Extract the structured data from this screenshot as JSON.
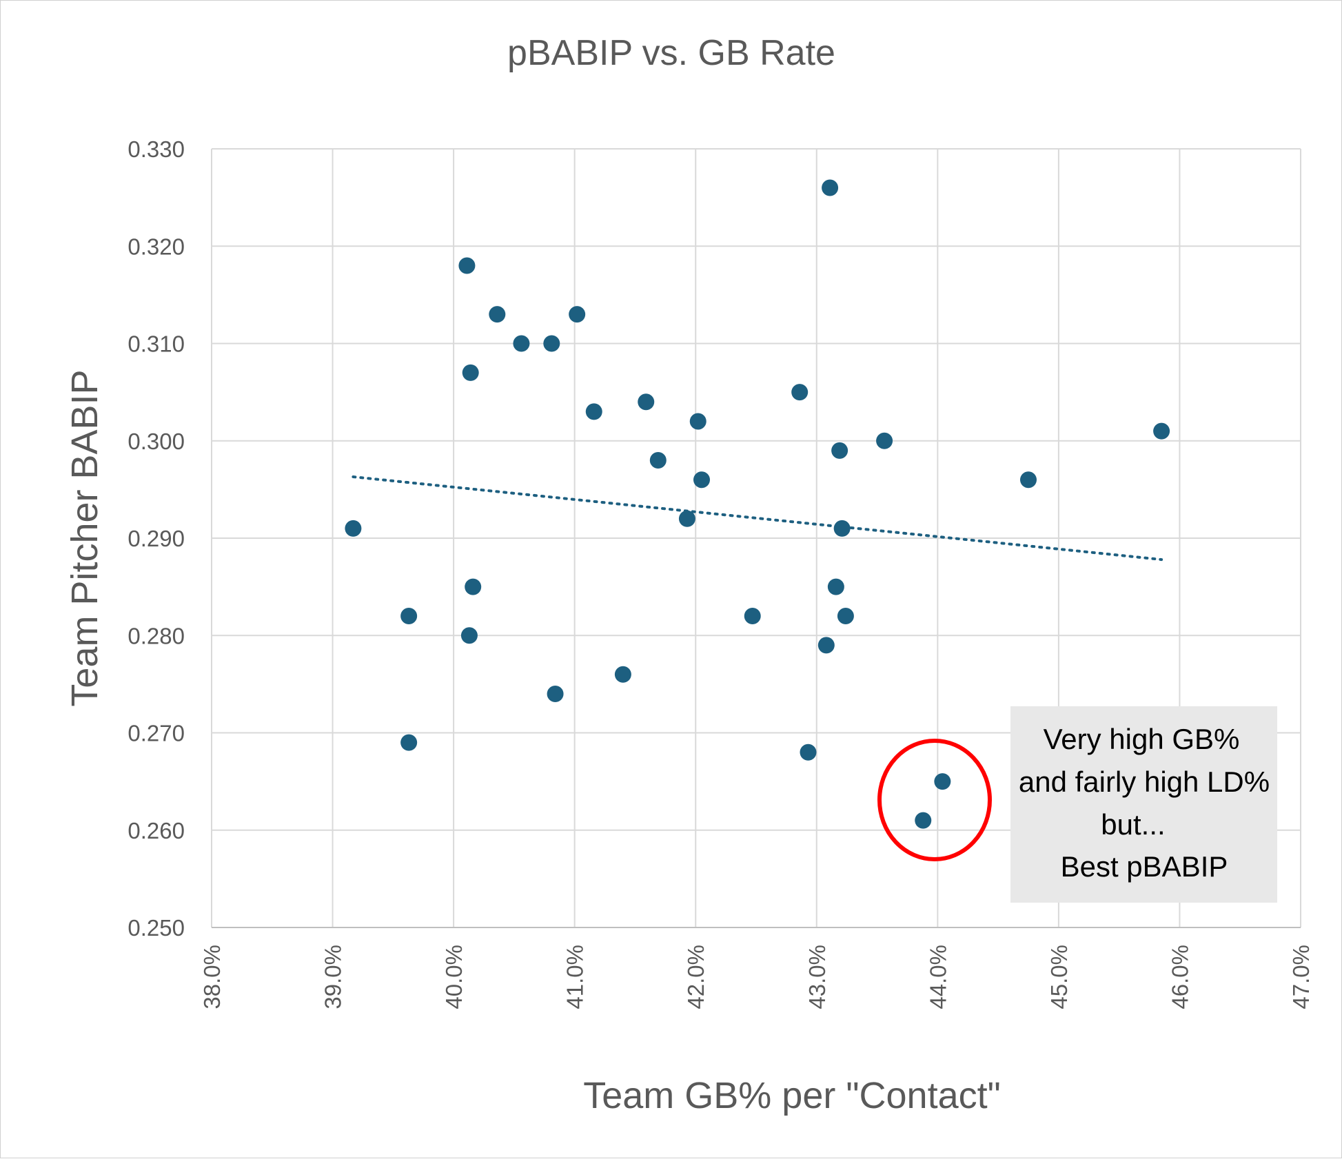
{
  "chart_data": {
    "type": "scatter",
    "title": "pBABIP vs. GB Rate",
    "xlabel": "Team GB% per \"Contact\"",
    "ylabel": "Team Pitcher BABIP",
    "xlim": [
      0.38,
      0.47
    ],
    "ylim": [
      0.25,
      0.33
    ],
    "x_ticks": [
      "38.0%",
      "39.0%",
      "40.0%",
      "41.0%",
      "42.0%",
      "43.0%",
      "44.0%",
      "45.0%",
      "46.0%",
      "47.0%"
    ],
    "y_ticks": [
      "0.330",
      "0.320",
      "0.310",
      "0.300",
      "0.290",
      "0.280",
      "0.270",
      "0.260",
      "0.250"
    ],
    "grid": true,
    "legend": "none",
    "marker_color": "#1d5f80",
    "trendline": {
      "type": "linear",
      "style": "dotted",
      "x": [
        0.3917,
        0.4585
      ],
      "y": [
        0.2963,
        0.2878
      ],
      "color": "#1d5f80"
    },
    "points": [
      {
        "x": 0.3917,
        "y": 0.291
      },
      {
        "x": 0.3963,
        "y": 0.282
      },
      {
        "x": 0.3963,
        "y": 0.269
      },
      {
        "x": 0.4011,
        "y": 0.318
      },
      {
        "x": 0.4014,
        "y": 0.307
      },
      {
        "x": 0.4016,
        "y": 0.285
      },
      {
        "x": 0.4013,
        "y": 0.28
      },
      {
        "x": 0.4036,
        "y": 0.313
      },
      {
        "x": 0.4056,
        "y": 0.31
      },
      {
        "x": 0.4081,
        "y": 0.31
      },
      {
        "x": 0.4084,
        "y": 0.274
      },
      {
        "x": 0.4102,
        "y": 0.313
      },
      {
        "x": 0.4116,
        "y": 0.303
      },
      {
        "x": 0.414,
        "y": 0.276
      },
      {
        "x": 0.4159,
        "y": 0.304
      },
      {
        "x": 0.4169,
        "y": 0.298
      },
      {
        "x": 0.4193,
        "y": 0.292
      },
      {
        "x": 0.4202,
        "y": 0.302
      },
      {
        "x": 0.4205,
        "y": 0.296
      },
      {
        "x": 0.4247,
        "y": 0.282
      },
      {
        "x": 0.4286,
        "y": 0.305
      },
      {
        "x": 0.4293,
        "y": 0.268
      },
      {
        "x": 0.4308,
        "y": 0.279
      },
      {
        "x": 0.4311,
        "y": 0.326
      },
      {
        "x": 0.4316,
        "y": 0.285
      },
      {
        "x": 0.4319,
        "y": 0.299
      },
      {
        "x": 0.4321,
        "y": 0.291
      },
      {
        "x": 0.4324,
        "y": 0.282
      },
      {
        "x": 0.4356,
        "y": 0.3
      },
      {
        "x": 0.4388,
        "y": 0.261
      },
      {
        "x": 0.4404,
        "y": 0.265
      },
      {
        "x": 0.4475,
        "y": 0.296
      },
      {
        "x": 0.4585,
        "y": 0.301
      }
    ],
    "annotation": {
      "lines": [
        "Very high GB%",
        "and fairly high LD%",
        "but...",
        "Best pBABIP"
      ],
      "box_color": "#e8e8e8",
      "highlight_color": "#ff0000"
    }
  }
}
